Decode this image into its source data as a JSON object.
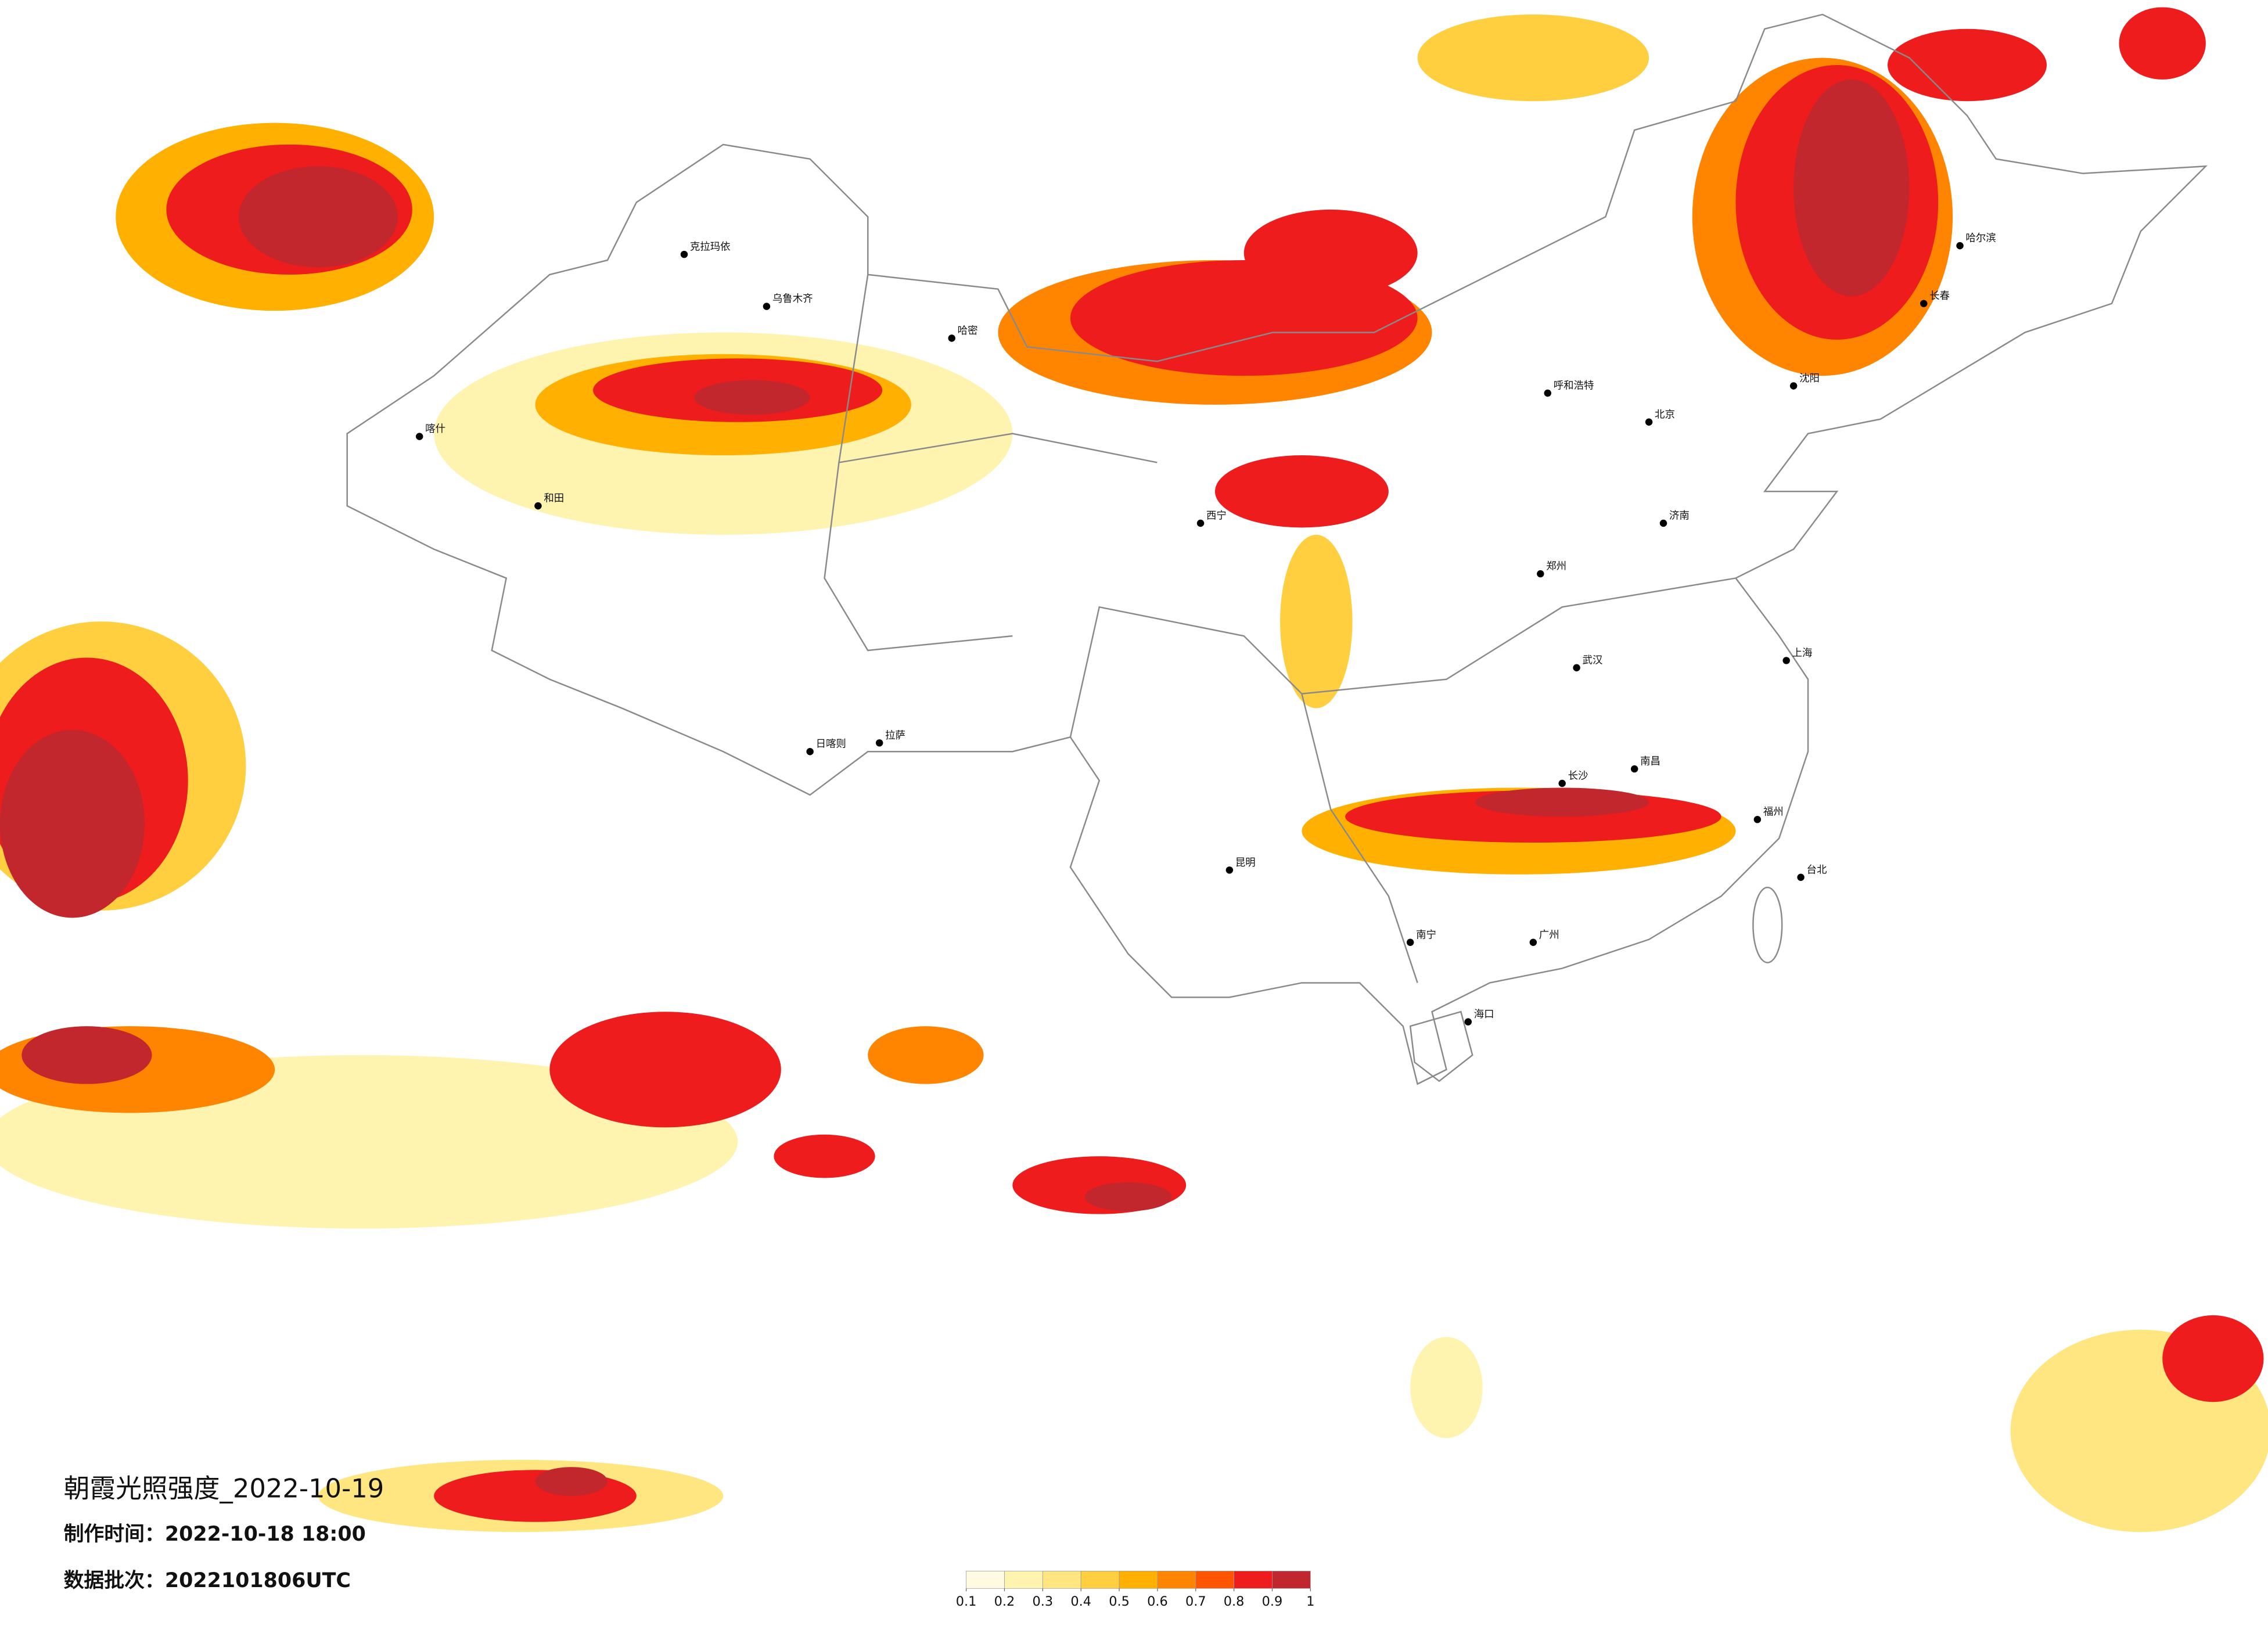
{
  "map": {
    "title": "朝霞光照强度_2022-10-19",
    "made_at": "制作时间：2022-10-18 18:00",
    "batch": "数据批次：2022101806UTC",
    "legend": {
      "colors": [
        "#fffbe0",
        "#fff3b0",
        "#ffe680",
        "#ffcf40",
        "#ffb000",
        "#ff8400",
        "#ff5500",
        "#ee1c1c",
        "#c1272d"
      ],
      "ticks": [
        0.1,
        0.2,
        0.3,
        0.4,
        0.5,
        0.6,
        0.7,
        0.8,
        0.9,
        1
      ]
    },
    "cities": [
      "克拉玛依",
      "乌鲁木齐",
      "哈密",
      "喀什",
      "和田",
      "拉萨",
      "日喀则",
      "西宁",
      "呼和浩特",
      "北京",
      "哈尔滨",
      "长春",
      "沈阳",
      "济南",
      "郑州",
      "武汉",
      "南昌",
      "长沙",
      "昆明",
      "南宁",
      "广州",
      "福州",
      "台北",
      "海口",
      "上海"
    ]
  }
}
